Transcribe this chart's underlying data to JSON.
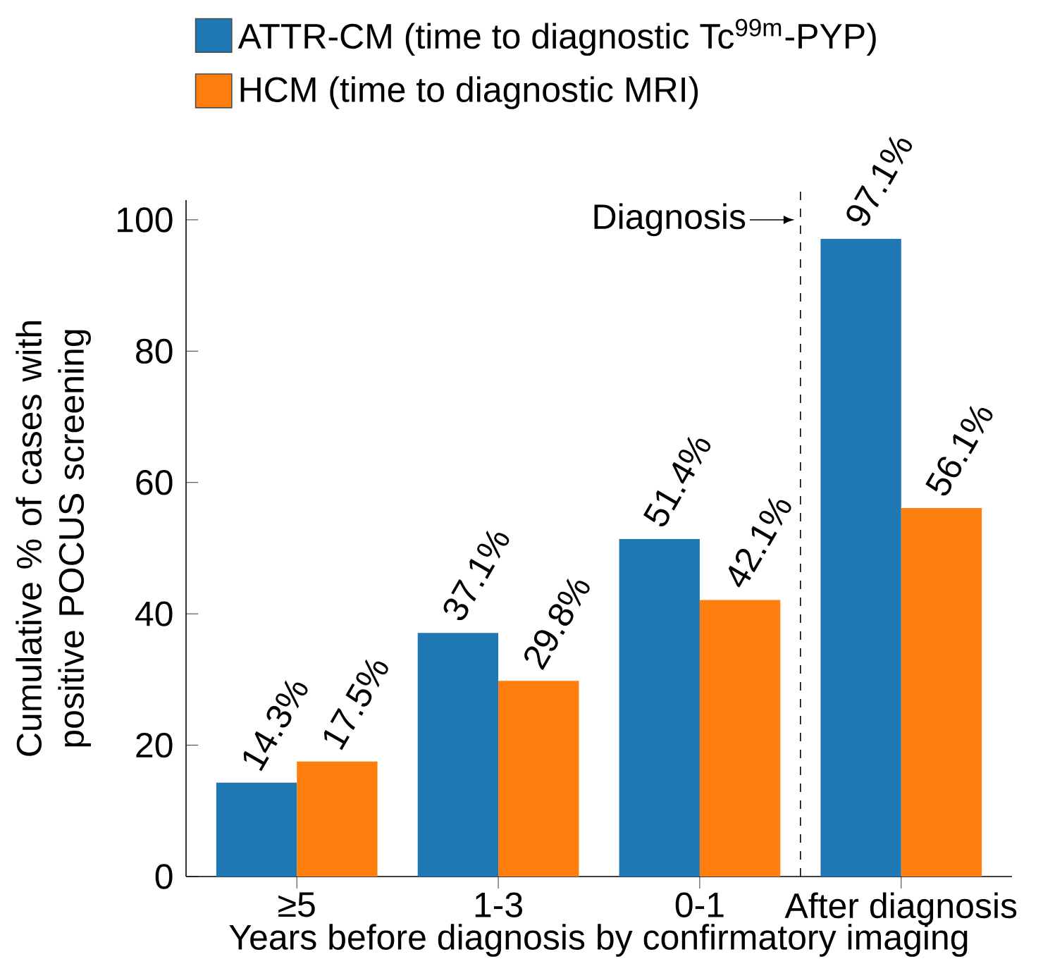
{
  "chart_data": {
    "type": "bar",
    "categories": [
      "≥5",
      "1-3",
      "0-1",
      "After diagnosis"
    ],
    "series": [
      {
        "name": "ATTR-CM (time to diagnostic Tc$^{99m}$-PYP)",
        "color": "#1f77b4",
        "values": [
          14.3,
          37.1,
          51.4,
          97.1
        ],
        "value_labels": [
          "14.3%",
          "37.1%",
          "51.4%",
          "97.1%"
        ]
      },
      {
        "name": "HCM (time to diagnostic MRI)",
        "color": "#ff7f0e",
        "values": [
          17.5,
          29.8,
          42.1,
          56.1
        ],
        "value_labels": [
          "17.5%",
          "29.8%",
          "42.1%",
          "56.1%"
        ]
      }
    ],
    "xlabel": "Years before diagnosis by confirmatory imaging",
    "ylabel": "Cumulative % of cases with positive POCUS screening",
    "ylim": [
      0,
      103
    ],
    "yticks": [
      0,
      20,
      40,
      60,
      80,
      100
    ],
    "legend": "top",
    "annotations": [
      "Diagnosis"
    ]
  }
}
